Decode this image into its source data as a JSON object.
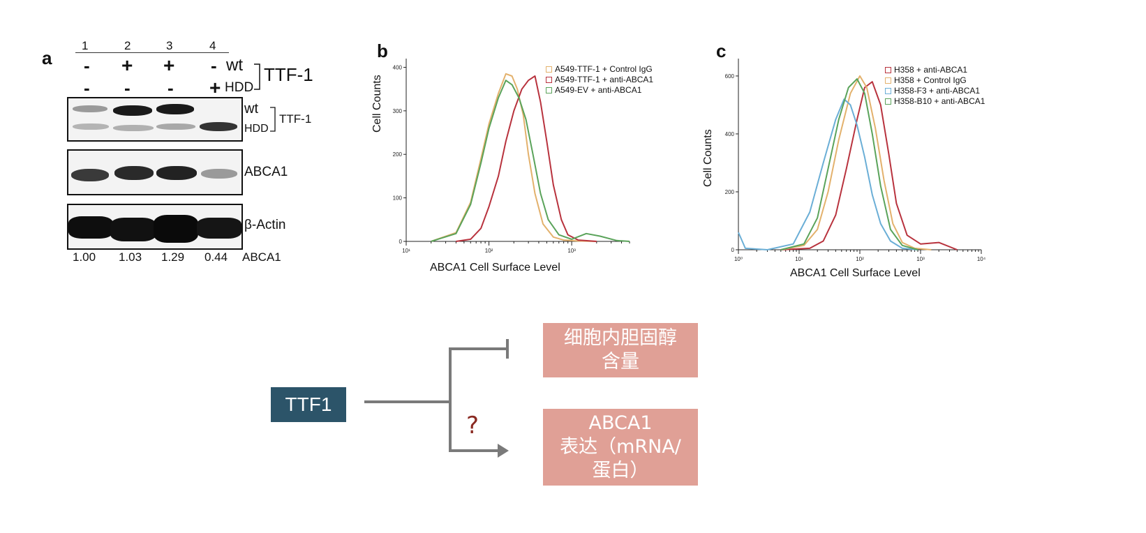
{
  "panel_a": {
    "letter": "a",
    "lanes": [
      "1",
      "2",
      "3",
      "4"
    ],
    "row_wt_signs": [
      "-",
      "+",
      "+",
      "-"
    ],
    "row_hdd_signs": [
      "-",
      "-",
      "-",
      "+"
    ],
    "row_wt_label": "wt",
    "row_hdd_label": "HDD",
    "group_label": "TTF-1",
    "blot1": {
      "wt": "wt",
      "hdd": "HDD",
      "group": "TTF-1"
    },
    "blot2_label": "ABCA1",
    "blot3_label": "β-Actin",
    "quant_values": [
      "1.00",
      "1.03",
      "1.29",
      "0.44"
    ],
    "quant_label": "ABCA1"
  },
  "panel_b": {
    "letter": "b",
    "ylabel": "Cell Counts",
    "xlabel": "ABCA1 Cell Surface Level",
    "legend": [
      {
        "label": "A549-TTF-1 + Control IgG",
        "color": "#e3b16c"
      },
      {
        "label": "A549-TTF-1 + anti-ABCA1",
        "color": "#b8323d"
      },
      {
        "label": "A549-EV + anti-ABCA1",
        "color": "#5aa35a"
      }
    ]
  },
  "panel_c": {
    "letter": "c",
    "ylabel": "Cell Counts",
    "xlabel": "ABCA1 Cell Surface Level",
    "legend": [
      {
        "label": "H358 + anti-ABCA1",
        "color": "#b8323d"
      },
      {
        "label": "H358 + Control IgG",
        "color": "#e3b16c"
      },
      {
        "label": "H358-F3 + anti-ABCA1",
        "color": "#6aaed6"
      },
      {
        "label": "H358-B10 + anti-ABCA1",
        "color": "#5aa35a"
      }
    ]
  },
  "diagram": {
    "source": "TTF1",
    "target_inhibit": [
      "细胞内胆固醇",
      "含量"
    ],
    "target_activate": [
      "ABCA1",
      "表达（mRNA/",
      "蛋白）"
    ],
    "question": "?"
  },
  "chart_data": [
    {
      "type": "line",
      "panel": "b",
      "xlabel": "ABCA1 Cell Surface Level",
      "ylabel": "Cell Counts",
      "x_scale": "log",
      "xlim": [
        10,
        5000
      ],
      "ylim": [
        0,
        420
      ],
      "yticks": [
        0,
        100,
        200,
        300,
        400
      ],
      "xtick_labels": [
        "10¹",
        "10²",
        "10³"
      ],
      "legend_position": "top-right",
      "series": [
        {
          "name": "A549-TTF-1 + Control IgG",
          "color": "#e3b16c",
          "x": [
            20,
            40,
            60,
            80,
            100,
            130,
            160,
            190,
            220,
            260,
            300,
            360,
            450,
            600,
            800,
            1200,
            2000
          ],
          "y": [
            0,
            20,
            90,
            190,
            270,
            340,
            385,
            380,
            350,
            290,
            200,
            110,
            40,
            10,
            3,
            1,
            0
          ]
        },
        {
          "name": "A549-TTF-1 + anti-ABCA1",
          "color": "#b8323d",
          "x": [
            40,
            60,
            80,
            100,
            130,
            160,
            200,
            250,
            300,
            360,
            420,
            500,
            600,
            750,
            900,
            1200,
            2000
          ],
          "y": [
            0,
            5,
            30,
            80,
            150,
            230,
            300,
            350,
            370,
            380,
            320,
            230,
            130,
            50,
            15,
            3,
            0
          ]
        },
        {
          "name": "A549-EV + anti-ABCA1",
          "color": "#5aa35a",
          "x": [
            20,
            40,
            60,
            80,
            100,
            130,
            160,
            190,
            230,
            280,
            340,
            420,
            520,
            700,
            1000,
            1500,
            2200,
            3500,
            5000
          ],
          "y": [
            0,
            18,
            85,
            180,
            260,
            330,
            370,
            360,
            330,
            280,
            200,
            110,
            50,
            15,
            5,
            18,
            12,
            2,
            0
          ]
        }
      ]
    },
    {
      "type": "line",
      "panel": "c",
      "xlabel": "ABCA1 Cell Surface Level",
      "ylabel": "Cell Counts",
      "x_scale": "log",
      "xlim": [
        1,
        10000
      ],
      "ylim": [
        0,
        660
      ],
      "yticks": [
        0,
        200,
        400,
        600
      ],
      "xtick_labels": [
        "10⁰",
        "10¹",
        "10²",
        "10³",
        "10⁴"
      ],
      "legend_position": "top-right",
      "series": [
        {
          "name": "H358 + anti-ABCA1",
          "color": "#b8323d",
          "x": [
            5,
            15,
            25,
            40,
            60,
            90,
            120,
            160,
            220,
            300,
            400,
            600,
            1000,
            2000,
            4000
          ],
          "y": [
            0,
            5,
            30,
            120,
            280,
            450,
            560,
            580,
            500,
            330,
            160,
            50,
            20,
            25,
            0
          ]
        },
        {
          "name": "H358 + Control IgG",
          "color": "#e3b16c",
          "x": [
            5,
            12,
            20,
            30,
            45,
            70,
            100,
            130,
            180,
            250,
            350,
            500,
            800,
            1500
          ],
          "y": [
            0,
            15,
            70,
            200,
            380,
            540,
            600,
            560,
            420,
            240,
            90,
            25,
            5,
            0
          ]
        },
        {
          "name": "H358-F3 + anti-ABCA1",
          "color": "#6aaed6",
          "x": [
            1,
            1.3,
            3,
            8,
            15,
            25,
            40,
            55,
            70,
            90,
            120,
            160,
            220,
            320,
            500,
            900
          ],
          "y": [
            60,
            5,
            0,
            20,
            130,
            300,
            450,
            520,
            500,
            430,
            320,
            190,
            90,
            30,
            5,
            0
          ]
        },
        {
          "name": "H358-B10 + anti-ABCA1",
          "color": "#5aa35a",
          "x": [
            5,
            12,
            20,
            30,
            45,
            65,
            90,
            120,
            160,
            220,
            320,
            500,
            900
          ],
          "y": [
            0,
            20,
            110,
            280,
            450,
            560,
            590,
            540,
            400,
            220,
            70,
            15,
            0
          ]
        }
      ]
    }
  ]
}
